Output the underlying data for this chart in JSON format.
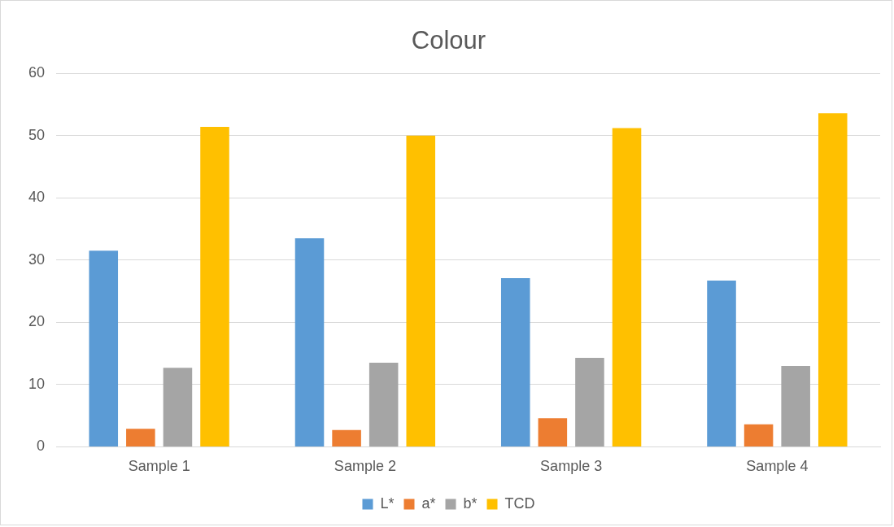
{
  "chart_data": {
    "type": "bar",
    "title": "Colour",
    "categories": [
      "Sample 1",
      "Sample 2",
      "Sample 3",
      "Sample 4"
    ],
    "series": [
      {
        "name": "L*",
        "color": "#5b9bd5",
        "values": [
          31.5,
          33.5,
          27.1,
          26.7
        ]
      },
      {
        "name": "a*",
        "color": "#ed7d31",
        "values": [
          2.9,
          2.7,
          4.6,
          3.6
        ]
      },
      {
        "name": "b*",
        "color": "#a5a5a5",
        "values": [
          12.7,
          13.5,
          14.3,
          13.0
        ]
      },
      {
        "name": "TCD",
        "color": "#ffc000",
        "values": [
          51.4,
          50.0,
          51.2,
          53.6
        ]
      }
    ],
    "ylim": [
      0,
      60
    ],
    "yticks": [
      0,
      10,
      20,
      30,
      40,
      50,
      60
    ],
    "grid": "y",
    "legend": "bottom"
  }
}
